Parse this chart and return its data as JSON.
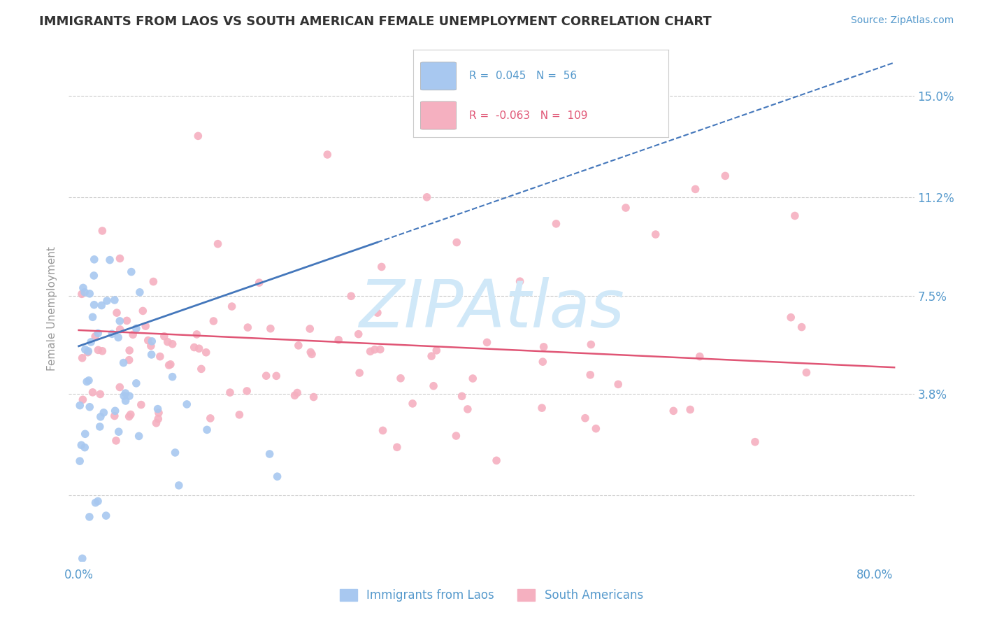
{
  "title": "IMMIGRANTS FROM LAOS VS SOUTH AMERICAN FEMALE UNEMPLOYMENT CORRELATION CHART",
  "source_text": "Source: ZipAtlas.com",
  "ylabel": "Female Unemployment",
  "watermark": "ZIPAtlas",
  "y_ticks": [
    0.0,
    0.038,
    0.075,
    0.112,
    0.15
  ],
  "y_tick_labels": [
    "",
    "3.8%",
    "7.5%",
    "11.2%",
    "15.0%"
  ],
  "xlim": [
    -0.01,
    0.84
  ],
  "ylim": [
    -0.025,
    0.165
  ],
  "blue_R": 0.045,
  "blue_N": 56,
  "pink_R": -0.063,
  "pink_N": 109,
  "blue_color": "#a8c8f0",
  "pink_color": "#f5b0c0",
  "blue_line_color": "#4477bb",
  "pink_line_color": "#e05575",
  "grid_color": "#cccccc",
  "title_color": "#333333",
  "axis_label_color": "#5599cc",
  "watermark_color": "#d0e8f8",
  "legend_label_blue": "Immigrants from Laos",
  "legend_label_pink": "South Americans",
  "blue_trend_start_y": 0.056,
  "blue_trend_end_y": 0.095,
  "blue_trend_end_x": 0.3,
  "pink_trend_start_y": 0.062,
  "pink_trend_end_y": 0.048,
  "pink_trend_end_x": 0.82
}
